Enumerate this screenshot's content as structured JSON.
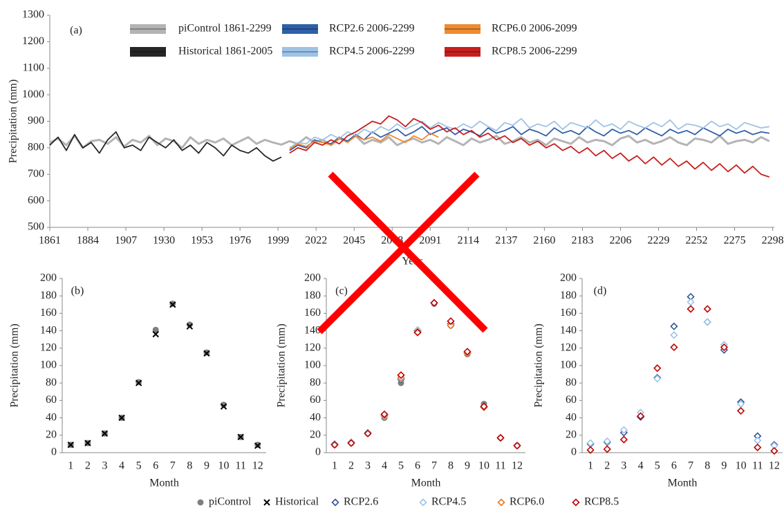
{
  "chart_data": [
    {
      "type": "line",
      "panel_label": "(a)",
      "xlabel": "Year",
      "ylabel": "Precipitation (mm)",
      "xlim": [
        1861,
        2299
      ],
      "xticks": [
        1861,
        1884,
        1907,
        1930,
        1953,
        1976,
        1999,
        2022,
        2045,
        2068,
        2091,
        2114,
        2137,
        2160,
        2183,
        2206,
        2229,
        2252,
        2275,
        2298
      ],
      "ylim": [
        500,
        1300
      ],
      "yticks": [
        500,
        600,
        700,
        800,
        900,
        1000,
        1100,
        1200,
        1300
      ],
      "x": [
        1861,
        1866,
        1871,
        1876,
        1881,
        1886,
        1891,
        1896,
        1901,
        1906,
        1911,
        1916,
        1921,
        1926,
        1931,
        1936,
        1941,
        1946,
        1951,
        1956,
        1961,
        1966,
        1971,
        1976,
        1981,
        1986,
        1991,
        1996,
        2001,
        2006,
        2011,
        2016,
        2021,
        2026,
        2031,
        2036,
        2041,
        2046,
        2051,
        2056,
        2061,
        2066,
        2071,
        2076,
        2081,
        2086,
        2091,
        2096,
        2101,
        2106,
        2111,
        2116,
        2121,
        2126,
        2131,
        2136,
        2141,
        2146,
        2151,
        2156,
        2161,
        2166,
        2171,
        2176,
        2181,
        2186,
        2191,
        2196,
        2201,
        2206,
        2211,
        2216,
        2221,
        2226,
        2231,
        2236,
        2241,
        2246,
        2251,
        2256,
        2261,
        2266,
        2271,
        2276,
        2281,
        2286,
        2291,
        2296
      ],
      "series": [
        {
          "name": "piControl 1861-2299",
          "color": "#b4b4b4",
          "values": [
            820,
            835,
            810,
            845,
            800,
            825,
            830,
            815,
            840,
            805,
            830,
            820,
            845,
            810,
            835,
            825,
            800,
            840,
            815,
            830,
            820,
            835,
            810,
            825,
            840,
            815,
            830,
            820,
            812,
            825,
            815,
            840,
            820,
            830,
            810,
            835,
            825,
            845,
            815,
            830,
            820,
            840,
            810,
            825,
            835,
            820,
            830,
            815,
            840,
            825,
            810,
            835,
            820,
            830,
            845,
            815,
            825,
            840,
            820,
            830,
            810,
            835,
            825,
            815,
            840,
            820,
            830,
            825,
            810,
            835,
            845,
            820,
            830,
            815,
            825,
            840,
            820,
            810,
            835,
            830,
            820,
            845,
            815,
            825,
            830,
            820,
            840,
            825
          ]
        },
        {
          "name": "Historical 1861-2005",
          "color": "#262626",
          "values": [
            810,
            840,
            790,
            850,
            800,
            820,
            780,
            830,
            860,
            800,
            810,
            790,
            840,
            820,
            800,
            830,
            790,
            810,
            780,
            820,
            800,
            770,
            810,
            790,
            780,
            800,
            770,
            750,
            765,
            null,
            null,
            null,
            null,
            null,
            null,
            null,
            null,
            null,
            null,
            null,
            null,
            null,
            null,
            null,
            null,
            null,
            null,
            null,
            null,
            null,
            null,
            null,
            null,
            null,
            null,
            null,
            null,
            null,
            null,
            null,
            null,
            null,
            null,
            null,
            null,
            null,
            null,
            null,
            null,
            null,
            null,
            null,
            null,
            null,
            null,
            null,
            null,
            null,
            null,
            null,
            null,
            null,
            null,
            null,
            null,
            null,
            null,
            null
          ]
        },
        {
          "name": "RCP2.6 2006-2299",
          "color": "#2f5fa8",
          "values": [
            null,
            null,
            null,
            null,
            null,
            null,
            null,
            null,
            null,
            null,
            null,
            null,
            null,
            null,
            null,
            null,
            null,
            null,
            null,
            null,
            null,
            null,
            null,
            null,
            null,
            null,
            null,
            null,
            null,
            790,
            810,
            800,
            830,
            820,
            815,
            840,
            825,
            850,
            830,
            860,
            840,
            855,
            870,
            845,
            860,
            880,
            850,
            865,
            875,
            850,
            870,
            860,
            845,
            875,
            855,
            865,
            880,
            850,
            870,
            860,
            845,
            875,
            855,
            865,
            850,
            880,
            860,
            845,
            870,
            855,
            865,
            850,
            875,
            860,
            845,
            870,
            855,
            865,
            850,
            875,
            860,
            845,
            870,
            855,
            865,
            850,
            860,
            855
          ]
        },
        {
          "name": "RCP4.5 2006-2299",
          "color": "#9dc3e6",
          "values": [
            null,
            null,
            null,
            null,
            null,
            null,
            null,
            null,
            null,
            null,
            null,
            null,
            null,
            null,
            null,
            null,
            null,
            null,
            null,
            null,
            null,
            null,
            null,
            null,
            null,
            null,
            null,
            null,
            null,
            800,
            820,
            815,
            840,
            830,
            850,
            835,
            860,
            845,
            870,
            855,
            880,
            865,
            890,
            870,
            885,
            900,
            875,
            895,
            880,
            870,
            890,
            875,
            900,
            880,
            865,
            895,
            885,
            910,
            875,
            890,
            880,
            900,
            870,
            895,
            885,
            875,
            905,
            880,
            890,
            870,
            900,
            885,
            875,
            895,
            880,
            905,
            870,
            890,
            885,
            875,
            900,
            880,
            890,
            870,
            895,
            885,
            875,
            880
          ]
        },
        {
          "name": "RCP6.0 2006-2099",
          "color": "#f08a32",
          "values": [
            null,
            null,
            null,
            null,
            null,
            null,
            null,
            null,
            null,
            null,
            null,
            null,
            null,
            null,
            null,
            null,
            null,
            null,
            null,
            null,
            null,
            null,
            null,
            null,
            null,
            null,
            null,
            null,
            null,
            795,
            815,
            805,
            825,
            820,
            810,
            835,
            820,
            845,
            830,
            840,
            825,
            850,
            835,
            820,
            845,
            830,
            855,
            840,
            null,
            null,
            null,
            null,
            null,
            null,
            null,
            null,
            null,
            null,
            null,
            null,
            null,
            null,
            null,
            null,
            null,
            null,
            null,
            null,
            null,
            null,
            null,
            null,
            null,
            null,
            null,
            null,
            null,
            null,
            null,
            null,
            null,
            null,
            null,
            null,
            null,
            null,
            null,
            null
          ]
        },
        {
          "name": "RCP8.5 2006-2299",
          "color": "#c81e1e",
          "values": [
            null,
            null,
            null,
            null,
            null,
            null,
            null,
            null,
            null,
            null,
            null,
            null,
            null,
            null,
            null,
            null,
            null,
            null,
            null,
            null,
            null,
            null,
            null,
            null,
            null,
            null,
            null,
            null,
            null,
            780,
            800,
            790,
            820,
            810,
            830,
            815,
            845,
            860,
            880,
            900,
            890,
            920,
            905,
            880,
            910,
            895,
            870,
            885,
            860,
            875,
            850,
            865,
            840,
            855,
            830,
            845,
            820,
            835,
            810,
            825,
            800,
            815,
            790,
            805,
            780,
            800,
            770,
            790,
            760,
            780,
            750,
            770,
            740,
            765,
            735,
            760,
            730,
            750,
            720,
            745,
            715,
            740,
            710,
            735,
            705,
            730,
            700,
            690
          ]
        }
      ]
    },
    {
      "type": "scatter",
      "panel_label": "(b)",
      "xlabel": "Month",
      "ylabel": "Precipitation (mm)",
      "categories": [
        "1",
        "2",
        "3",
        "4",
        "5",
        "6",
        "7",
        "8",
        "9",
        "10",
        "11",
        "12"
      ],
      "ylim": [
        0,
        200
      ],
      "yticks": [
        0,
        20,
        40,
        60,
        80,
        100,
        120,
        140,
        160,
        180,
        200
      ],
      "series": [
        {
          "name": "piControl",
          "color": "#7f7f7f",
          "marker": "circle",
          "values": [
            9,
            11,
            22,
            40,
            81,
            141,
            171,
            147,
            115,
            55,
            18,
            9
          ]
        },
        {
          "name": "Historical",
          "color": "#000000",
          "marker": "x",
          "values": [
            9,
            11,
            22,
            40,
            80,
            136,
            170,
            145,
            114,
            53,
            18,
            8
          ]
        }
      ]
    },
    {
      "type": "scatter",
      "panel_label": "(c)",
      "xlabel": "Month",
      "ylabel": "Precipitation (mm)",
      "categories": [
        "1",
        "2",
        "3",
        "4",
        "5",
        "6",
        "7",
        "8",
        "9",
        "10",
        "11",
        "12"
      ],
      "ylim": [
        0,
        200
      ],
      "yticks": [
        0,
        20,
        40,
        60,
        80,
        100,
        120,
        140,
        160,
        180,
        200
      ],
      "series": [
        {
          "name": "piControl",
          "color": "#7f7f7f",
          "marker": "circle",
          "values": [
            9,
            11,
            22,
            40,
            80,
            139,
            171,
            146,
            113,
            56,
            17,
            8
          ]
        },
        {
          "name": "RCP2.6",
          "color": "#2f5597",
          "marker": "diamond",
          "values": [
            10,
            12,
            23,
            42,
            84,
            140,
            172,
            148,
            115,
            53,
            17,
            8
          ]
        },
        {
          "name": "RCP4.5",
          "color": "#9dc3e6",
          "marker": "diamond",
          "values": [
            10,
            12,
            23,
            42,
            85,
            141,
            172,
            147,
            115,
            53,
            17,
            8
          ]
        },
        {
          "name": "RCP6.0",
          "color": "#e07b28",
          "marker": "diamond",
          "values": [
            9,
            11,
            22,
            43,
            86,
            139,
            172,
            146,
            114,
            52,
            17,
            8
          ]
        },
        {
          "name": "RCP8.5",
          "color": "#c00000",
          "marker": "diamond",
          "values": [
            9,
            11,
            22,
            44,
            89,
            138,
            172,
            151,
            116,
            53,
            17,
            8
          ]
        }
      ]
    },
    {
      "type": "scatter",
      "panel_label": "(d)",
      "xlabel": "Month",
      "ylabel": "Precipitation (mm)",
      "categories": [
        "1",
        "2",
        "3",
        "4",
        "5",
        "6",
        "7",
        "8",
        "9",
        "10",
        "11",
        "12"
      ],
      "ylim": [
        0,
        200
      ],
      "yticks": [
        0,
        20,
        40,
        60,
        80,
        100,
        120,
        140,
        160,
        180,
        200
      ],
      "series": [
        {
          "name": "RCP2.6",
          "color": "#2f5597",
          "marker": "diamond",
          "values": [
            10,
            12,
            23,
            41,
            86,
            145,
            179,
            150,
            118,
            58,
            19,
            9
          ]
        },
        {
          "name": "RCP4.5",
          "color": "#9dc3e6",
          "marker": "diamond",
          "values": [
            11,
            13,
            26,
            46,
            85,
            135,
            173,
            150,
            124,
            56,
            14,
            8
          ]
        },
        {
          "name": "RCP8.5",
          "color": "#c00000",
          "marker": "diamond",
          "values": [
            3,
            4,
            15,
            42,
            97,
            121,
            165,
            165,
            121,
            48,
            6,
            2
          ]
        }
      ]
    }
  ]
}
